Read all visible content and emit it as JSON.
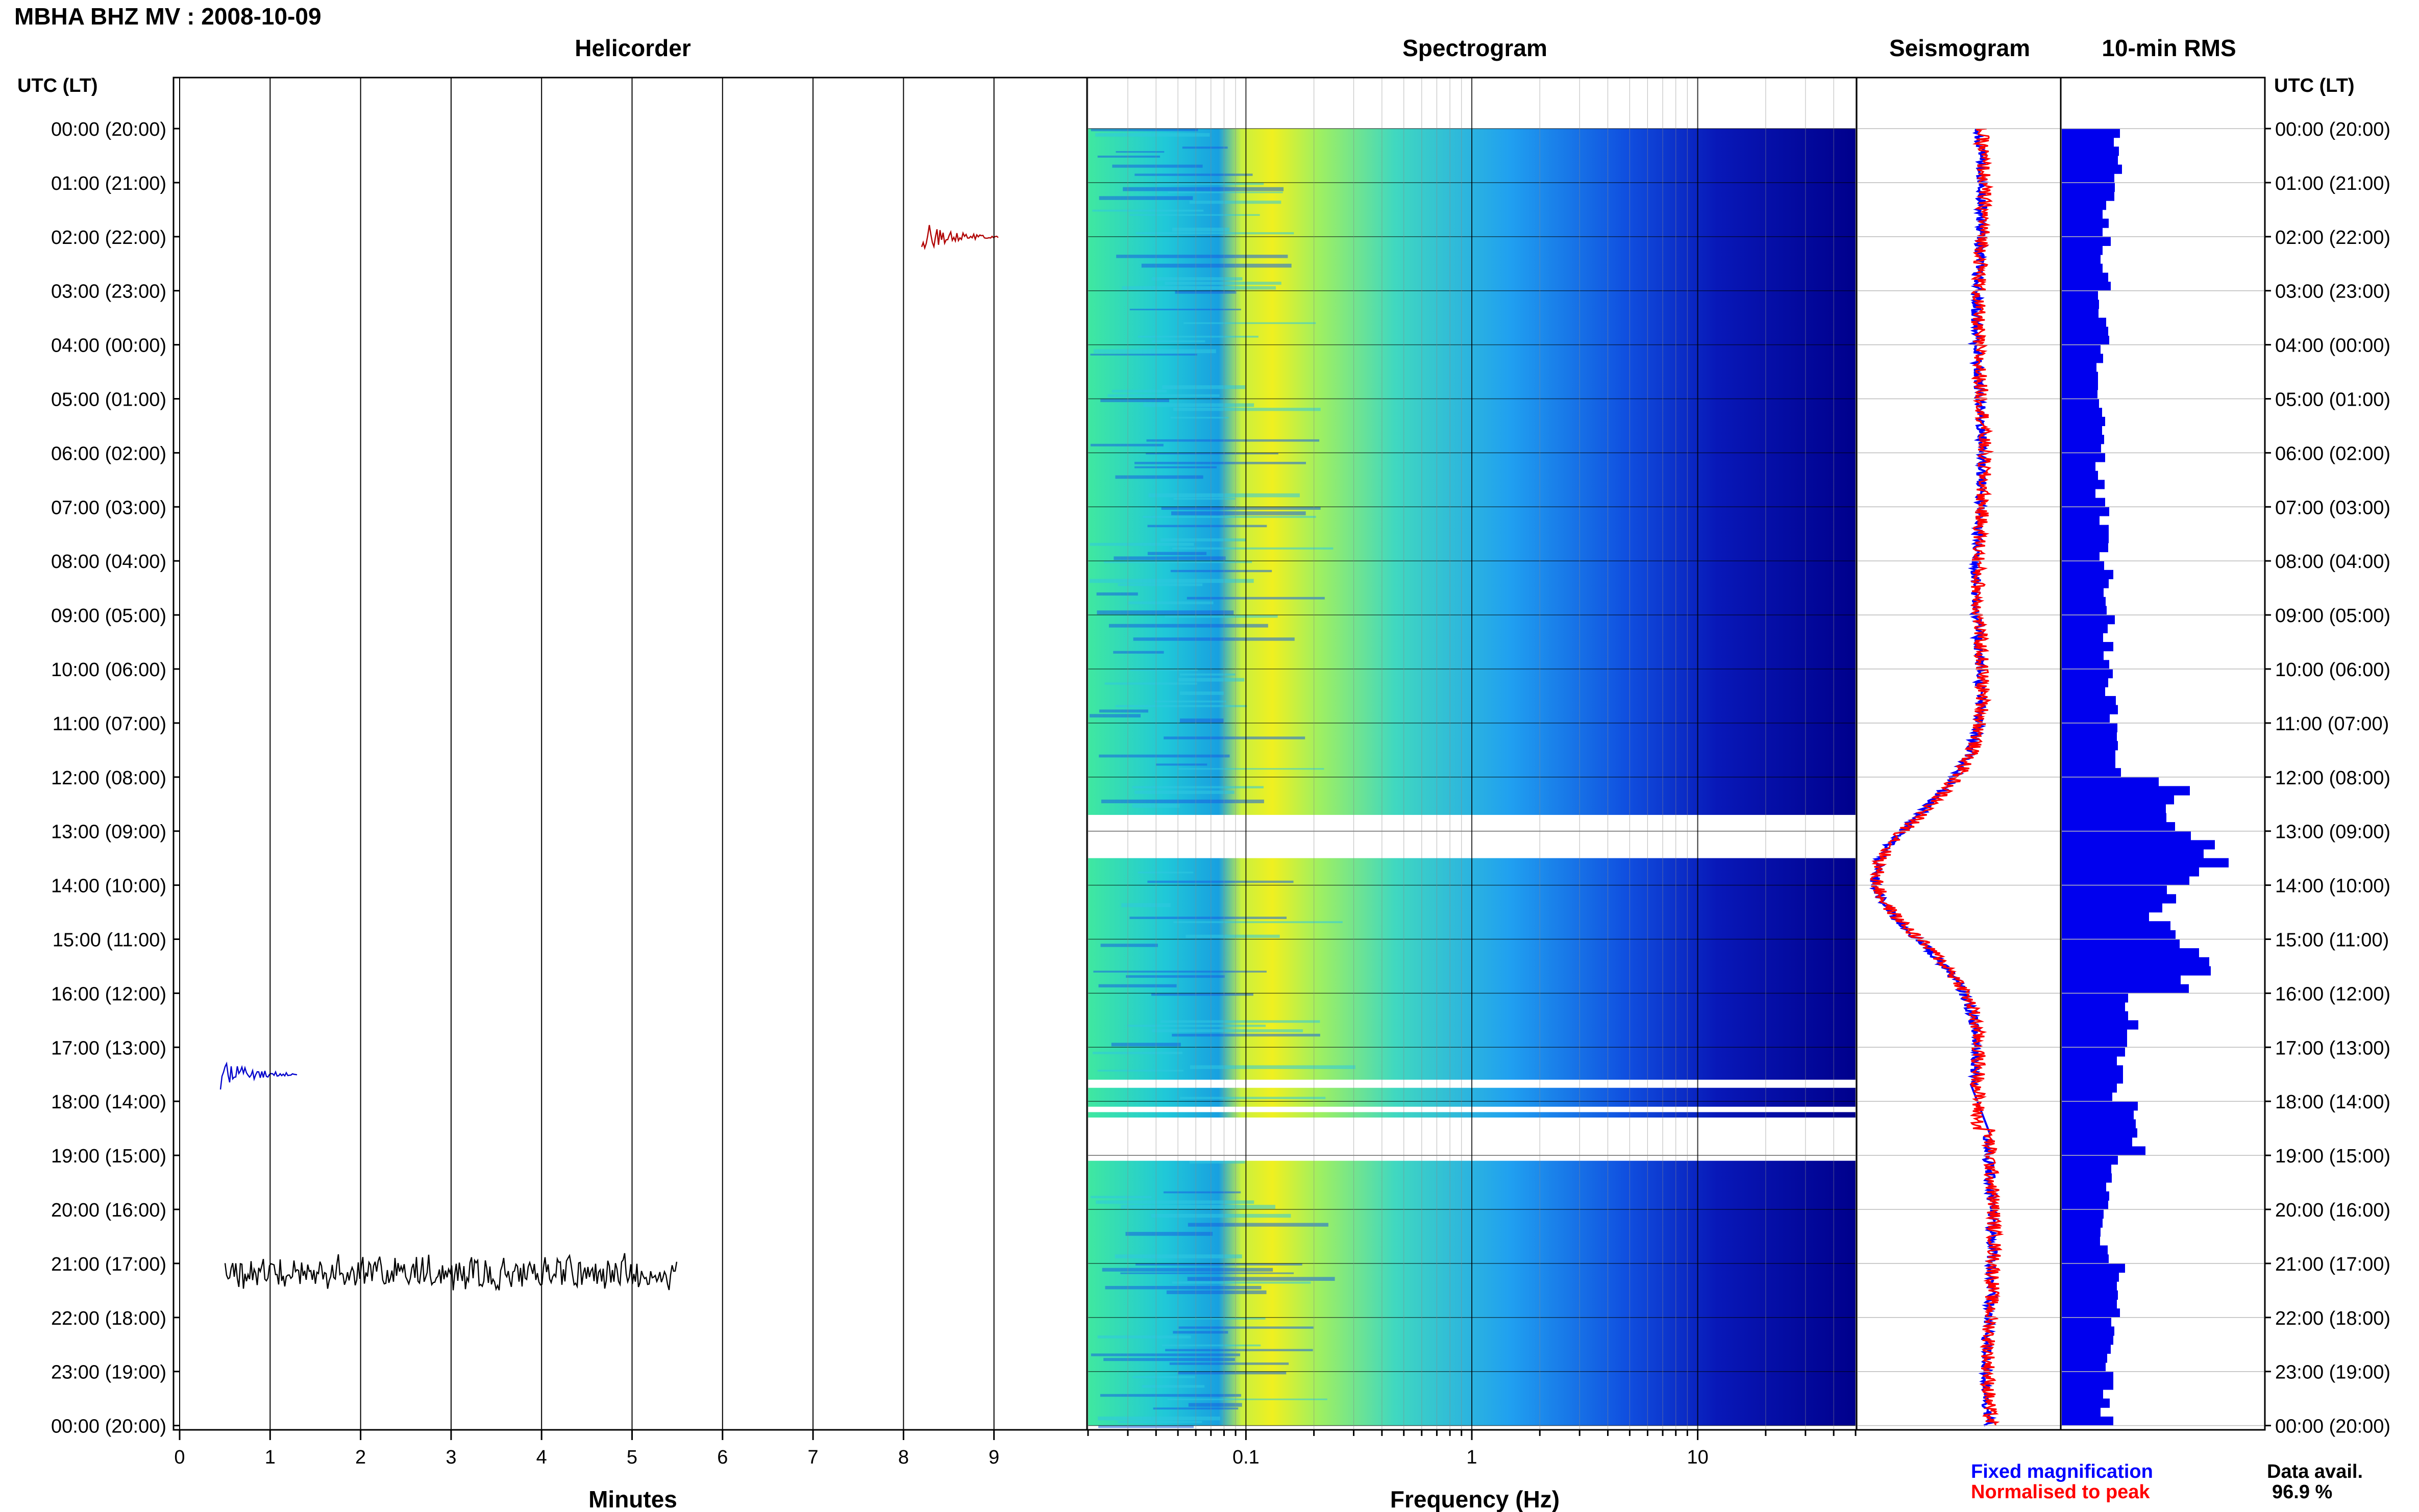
{
  "header": {
    "title": "MBHA BHZ MV : 2008-10-09"
  },
  "chart_data": [
    {
      "type": "helicorder",
      "title": "Helicorder",
      "xlabel": "Minutes",
      "xticks": [
        "0",
        "1",
        "2",
        "3",
        "4",
        "5",
        "6",
        "7",
        "8",
        "9"
      ],
      "xlim": [
        0,
        10
      ],
      "trace_colors": [
        "#000000",
        "#b00000",
        "#0000cc",
        "#008800"
      ],
      "gap_rows_utc_hours": [
        13.0,
        13.17,
        17.33,
        17.5,
        18.17,
        18.33
      ],
      "events": [
        {
          "utc": "02:00",
          "minute": 8.2,
          "color": "#b00000"
        },
        {
          "utc": "17:30",
          "minute": 0.45,
          "color": "#0000cc"
        },
        {
          "utc": "21:10",
          "minute": 0.5,
          "minute_end": 5.5,
          "color": "#000000",
          "label": ""
        }
      ]
    },
    {
      "type": "heatmap",
      "title": "Spectrogram",
      "xlabel": "Frequency (Hz)",
      "xscale": "log",
      "xticks": [
        "0.1",
        "1",
        "10"
      ],
      "xlim": [
        0.02,
        50
      ],
      "gaps_utc_hours": [
        [
          12.7,
          13.5
        ],
        [
          17.6,
          17.75
        ],
        [
          18.1,
          18.2
        ],
        [
          18.3,
          19.1
        ]
      ]
    },
    {
      "type": "line",
      "title": "Seismogram",
      "series": [
        {
          "name": "Fixed magnification",
          "color": "#0000ff"
        },
        {
          "name": "Normalised to peak",
          "color": "#ff0000"
        }
      ]
    },
    {
      "type": "bar",
      "title": "10-min RMS",
      "orientation": "horizontal",
      "color": "#0000ee",
      "values_by_hour": [
        1.0,
        0.85,
        0.8,
        0.75,
        0.72,
        0.7,
        0.7,
        0.75,
        0.8,
        0.85,
        0.9,
        1.0,
        2.0,
        2.6,
        1.8,
        2.4,
        1.2,
        1.0,
        1.4,
        0.9,
        0.8,
        1.0,
        0.85,
        0.8
      ]
    }
  ],
  "axes": {
    "utc_header": "UTC (LT)",
    "time_labels": [
      "00:00 (20:00)",
      "01:00 (21:00)",
      "02:00 (22:00)",
      "03:00 (23:00)",
      "04:00 (00:00)",
      "05:00 (01:00)",
      "06:00 (02:00)",
      "07:00 (03:00)",
      "08:00 (04:00)",
      "09:00 (05:00)",
      "10:00 (06:00)",
      "11:00 (07:00)",
      "12:00 (08:00)",
      "13:00 (09:00)",
      "14:00 (10:00)",
      "15:00 (11:00)",
      "16:00 (12:00)",
      "17:00 (13:00)",
      "18:00 (14:00)",
      "19:00 (15:00)",
      "20:00 (16:00)",
      "21:00 (17:00)",
      "22:00 (18:00)",
      "23:00 (19:00)",
      "00:00 (20:00)"
    ]
  },
  "legend": {
    "fixed": "Fixed magnification",
    "fixed_color": "#0000ff",
    "normalised": "Normalised to peak",
    "normalised_color": "#ff0000"
  },
  "data_availability": {
    "label": "Data avail.",
    "value": "96.9 %"
  }
}
